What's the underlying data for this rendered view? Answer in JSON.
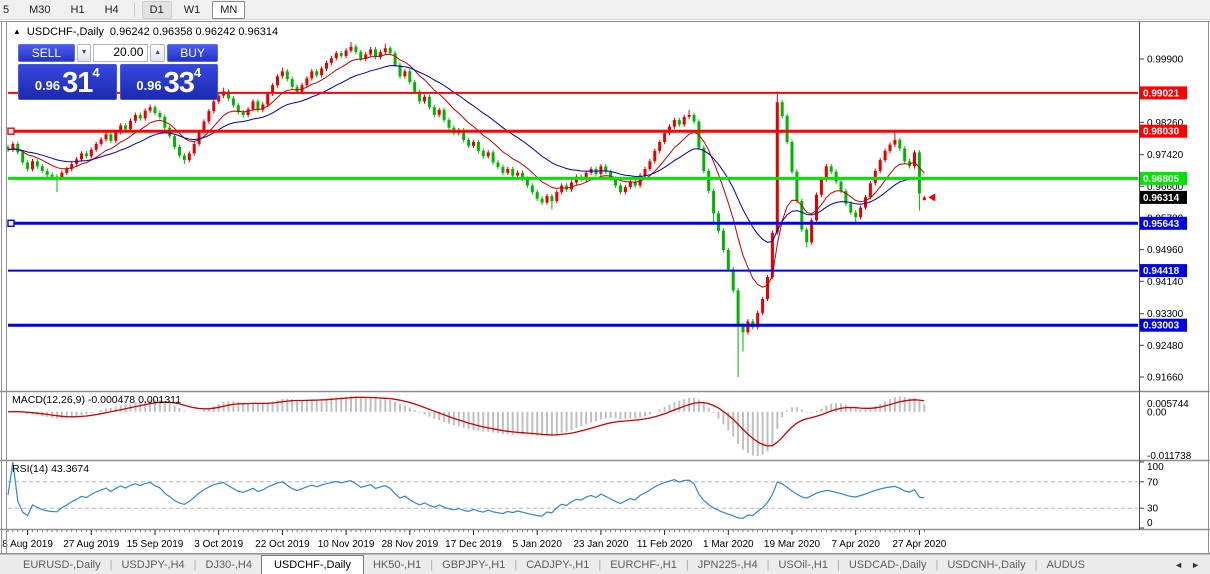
{
  "toolbar": {
    "timeframes": [
      {
        "label": "5",
        "state": "plain"
      },
      {
        "label": "M30",
        "state": "plain"
      },
      {
        "label": "H1",
        "state": "plain"
      },
      {
        "label": "H4",
        "state": "plain",
        "sep_after": true
      },
      {
        "label": "D1",
        "state": "highlight"
      },
      {
        "label": "W1",
        "state": "plain"
      },
      {
        "label": "MN",
        "state": "outlined"
      }
    ]
  },
  "title": {
    "collapse_icon": "▲",
    "symbol": "USDCHF-,Daily",
    "ohlc": "0.96242 0.96358 0.96242 0.96314"
  },
  "one_click": {
    "sell_label": "SELL",
    "buy_label": "BUY",
    "volume": "20.00",
    "spin_down": "▼",
    "spin_up": "▲",
    "sell_price": {
      "small": "0.96",
      "big": "31",
      "sup": "4"
    },
    "buy_price": {
      "small": "0.96",
      "big": "33",
      "sup": "4"
    }
  },
  "chart_data": {
    "type": "candlestick",
    "symbol": "USDCHF-",
    "timeframe": "Daily",
    "last_ohlc": {
      "open": 0.96242,
      "high": 0.96358,
      "low": 0.96242,
      "close": 0.96314
    },
    "y_axis": {
      "price_at_top": 1.00807,
      "price_at_bottom": 0.91296,
      "ticks": [
        {
          "label": "0.99900",
          "price": 0.999
        },
        {
          "label": "0.98260",
          "price": 0.9826
        },
        {
          "label": "0.97420",
          "price": 0.9742
        },
        {
          "label": "0.96600",
          "price": 0.966
        },
        {
          "label": "0.95780",
          "price": 0.9578
        },
        {
          "label": "0.94960",
          "price": 0.9496
        },
        {
          "label": "0.94140",
          "price": 0.9414
        },
        {
          "label": "0.93300",
          "price": 0.933
        },
        {
          "label": "0.92480",
          "price": 0.9248
        },
        {
          "label": "0.91660",
          "price": 0.9166
        }
      ]
    },
    "levels": [
      {
        "label": "0.99021",
        "price": 0.99021,
        "color": "#ff0000",
        "width": 2,
        "handle": false
      },
      {
        "label": "0.98030",
        "price": 0.9803,
        "color": "#ff0000",
        "width": 3,
        "handle": true
      },
      {
        "label": "0.96805",
        "price": 0.96805,
        "color": "#00e200",
        "width": 3,
        "handle": false
      },
      {
        "label": "0.95643",
        "price": 0.95643,
        "color": "#0000e8",
        "width": 3,
        "handle": true
      },
      {
        "label": "0.94418",
        "price": 0.94418,
        "color": "#0000e8",
        "width": 2,
        "handle": false
      },
      {
        "label": "0.93003",
        "price": 0.93003,
        "color": "#0000e8",
        "width": 3,
        "handle": false
      }
    ],
    "current_price": {
      "label": "0.96314",
      "price": 0.96314
    },
    "dates": [
      {
        "label": "8 Aug 2019",
        "bar": 4
      },
      {
        "label": "27 Aug 2019",
        "bar": 17
      },
      {
        "label": "15 Sep 2019",
        "bar": 30
      },
      {
        "label": "3 Oct 2019",
        "bar": 43
      },
      {
        "label": "22 Oct 2019",
        "bar": 56
      },
      {
        "label": "10 Nov 2019",
        "bar": 69
      },
      {
        "label": "28 Nov 2019",
        "bar": 82
      },
      {
        "label": "17 Dec 2019",
        "bar": 95
      },
      {
        "label": "5 Jan 2020",
        "bar": 108
      },
      {
        "label": "23 Jan 2020",
        "bar": 121
      },
      {
        "label": "11 Feb 2020",
        "bar": 134
      },
      {
        "label": "1 Mar 2020",
        "bar": 147
      },
      {
        "label": "19 Mar 2020",
        "bar": 160
      },
      {
        "label": "7 Apr 2020",
        "bar": 173
      },
      {
        "label": "27 Apr 2020",
        "bar": 186
      }
    ],
    "closes": [
      0.9755,
      0.977,
      0.9748,
      0.9722,
      0.9705,
      0.9725,
      0.9712,
      0.97,
      0.969,
      0.9685,
      0.9682,
      0.9695,
      0.9705,
      0.9718,
      0.973,
      0.9745,
      0.9738,
      0.9755,
      0.977,
      0.9782,
      0.9795,
      0.9778,
      0.98,
      0.9818,
      0.9808,
      0.983,
      0.9845,
      0.9836,
      0.9856,
      0.9865,
      0.985,
      0.984,
      0.9812,
      0.979,
      0.9762,
      0.974,
      0.9728,
      0.9745,
      0.977,
      0.98,
      0.9828,
      0.9855,
      0.988,
      0.9895,
      0.9906,
      0.9888,
      0.987,
      0.9852,
      0.9845,
      0.986,
      0.988,
      0.9858,
      0.9872,
      0.99,
      0.9922,
      0.9945,
      0.9958,
      0.9938,
      0.9918,
      0.9905,
      0.9922,
      0.994,
      0.9958,
      0.9948,
      0.9965,
      0.998,
      0.9992,
      1.0005,
      0.9998,
      1.0012,
      1.0022,
      1.0008,
      0.999,
      1.0002,
      1.0015,
      0.9995,
      1.0008,
      1.0018,
      1.0005,
      0.9975,
      0.9945,
      0.9958,
      0.993,
      0.9905,
      0.988,
      0.9892,
      0.9865,
      0.9845,
      0.9858,
      0.9832,
      0.9812,
      0.9798,
      0.9805,
      0.978,
      0.9765,
      0.9775,
      0.9752,
      0.9738,
      0.9748,
      0.9722,
      0.971,
      0.9695,
      0.9705,
      0.9688,
      0.9695,
      0.968,
      0.9662,
      0.9645,
      0.9628,
      0.9618,
      0.9635,
      0.9622,
      0.9645,
      0.9662,
      0.9652,
      0.967,
      0.9685,
      0.9678,
      0.9695,
      0.9705,
      0.9692,
      0.9712,
      0.9698,
      0.968,
      0.9662,
      0.9645,
      0.9658,
      0.9672,
      0.9662,
      0.9688,
      0.9705,
      0.9725,
      0.9752,
      0.9775,
      0.9798,
      0.9815,
      0.9832,
      0.982,
      0.984,
      0.9845,
      0.9828,
      0.976,
      0.97,
      0.9648,
      0.959,
      0.9545,
      0.9495,
      0.9445,
      0.939,
      0.93,
      0.9282,
      0.931,
      0.9295,
      0.9332,
      0.9368,
      0.9425,
      0.954,
      0.9878,
      0.9842,
      0.9775,
      0.9698,
      0.9622,
      0.9548,
      0.9515,
      0.9572,
      0.9638,
      0.9678,
      0.9712,
      0.9698,
      0.9672,
      0.9648,
      0.9615,
      0.9592,
      0.958,
      0.9605,
      0.9632,
      0.9668,
      0.97,
      0.9728,
      0.9752,
      0.9768,
      0.978,
      0.9758,
      0.9725,
      0.9712,
      0.9748,
      0.9642,
      0.96314
    ],
    "first_open": 0.9762,
    "default_wick": 0.0006,
    "wick_overrides": {
      "10": {
        "l": 0.9645
      },
      "29": {
        "h": 0.9872
      },
      "36": {
        "l": 0.9718
      },
      "44": {
        "h": 0.9916
      },
      "48": {
        "l": 0.9838
      },
      "56": {
        "h": 0.9968
      },
      "70": {
        "h": 1.0034
      },
      "77": {
        "h": 1.003
      },
      "111": {
        "l": 0.96
      },
      "139": {
        "h": 0.9858
      },
      "144": {
        "l": 0.956
      },
      "149": {
        "l": 0.9166
      },
      "150": {
        "l": 0.9232
      },
      "157": {
        "h": 0.9906
      },
      "163": {
        "l": 0.9502
      },
      "173": {
        "l": 0.9562
      },
      "181": {
        "h": 0.9807
      },
      "186": {
        "l": 0.9597
      },
      "187": {
        "o": 0.96242,
        "h": 0.96358,
        "l": 0.96242
      }
    },
    "bull_color": "#e60000",
    "bear_color": "#00b400",
    "ma_lines": [
      {
        "period": 10,
        "color": "#c00000"
      },
      {
        "period": 24,
        "color": "#0000a8"
      }
    ],
    "macd": {
      "label": "MACD(12,26,9) -0.000478 0.001311",
      "params": [
        12,
        26,
        9
      ],
      "value": "-0.000478",
      "signal_value": "0.001311",
      "axis_labels": [
        "0.005744",
        "0.00",
        "-0.011738"
      ],
      "histogram_color": "#c0c0c0",
      "signal_color": "#cc0000"
    },
    "rsi": {
      "label": "RSI(14) 43.3674",
      "period": 14,
      "value": "43.3674",
      "axis_labels": [
        "100",
        "70",
        "30",
        "0"
      ],
      "level_lines": [
        70,
        30
      ],
      "line_color": "#3385d6"
    },
    "marker": {
      "shape": "left-arrow",
      "color": "#e60000"
    }
  },
  "tabs": {
    "items": [
      {
        "label": "EURUSD-,Daily",
        "active": false
      },
      {
        "label": "USDJPY-,H4",
        "active": false
      },
      {
        "label": "DJ30-,H4",
        "active": false
      },
      {
        "label": "USDCHF-,Daily",
        "active": true
      },
      {
        "label": "HK50-,H1",
        "active": false
      },
      {
        "label": "GBPJPY-,H1",
        "active": false
      },
      {
        "label": "CADJPY-,H1",
        "active": false
      },
      {
        "label": "EURCHF-,H1",
        "active": false
      },
      {
        "label": "JPN225-,H4",
        "active": false
      },
      {
        "label": "USOil-,H1",
        "active": false
      },
      {
        "label": "USDCAD-,Daily",
        "active": false
      },
      {
        "label": "USDCNH-,Daily",
        "active": false
      },
      {
        "label": "AUDUS",
        "active": false
      }
    ],
    "scroll_left": "◄",
    "scroll_right": "►"
  }
}
